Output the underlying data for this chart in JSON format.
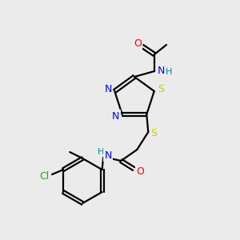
{
  "bg_color": "#ebebeb",
  "bond_color": "#000000",
  "atom_colors": {
    "O": "#ff0000",
    "N": "#0000ff",
    "S": "#cccc00",
    "Cl": "#00bb00",
    "C": "#000000",
    "H": "#008888"
  },
  "figsize": [
    3.0,
    3.0
  ],
  "dpi": 100,
  "lw": 1.6,
  "ring_r": 26,
  "benz_r": 28
}
